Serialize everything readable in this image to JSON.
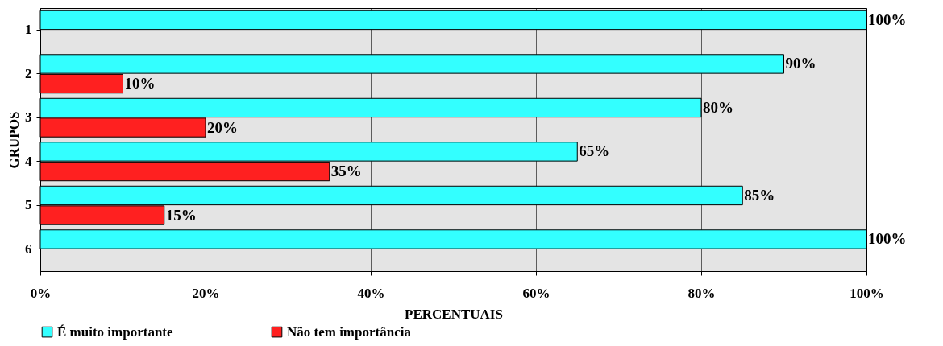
{
  "chart_data": {
    "type": "bar",
    "orientation": "horizontal",
    "xlabel": "PERCENTUAIS",
    "ylabel": "GRUPOS",
    "categories": [
      "1",
      "2",
      "3",
      "4",
      "5",
      "6"
    ],
    "series": [
      {
        "name": "É muito importante",
        "color": "#33ffff",
        "values": [
          100,
          90,
          80,
          65,
          85,
          100
        ],
        "value_labels": [
          "100%",
          "90%",
          "80%",
          "65%",
          "85%",
          "100%"
        ]
      },
      {
        "name": "Não tem importância",
        "color": "#ff2020",
        "values": [
          null,
          10,
          20,
          35,
          15,
          null
        ],
        "value_labels": [
          null,
          "10%",
          "20%",
          "35%",
          "15%",
          null
        ]
      }
    ],
    "xlim": [
      0,
      100
    ],
    "xticks": [
      {
        "value": 0,
        "label": "0%"
      },
      {
        "value": 20,
        "label": "20%"
      },
      {
        "value": 40,
        "label": "40%"
      },
      {
        "value": 60,
        "label": "60%"
      },
      {
        "value": 80,
        "label": "80%"
      },
      {
        "value": 100,
        "label": "100%"
      }
    ],
    "grid": "x",
    "legend": "bottom"
  }
}
